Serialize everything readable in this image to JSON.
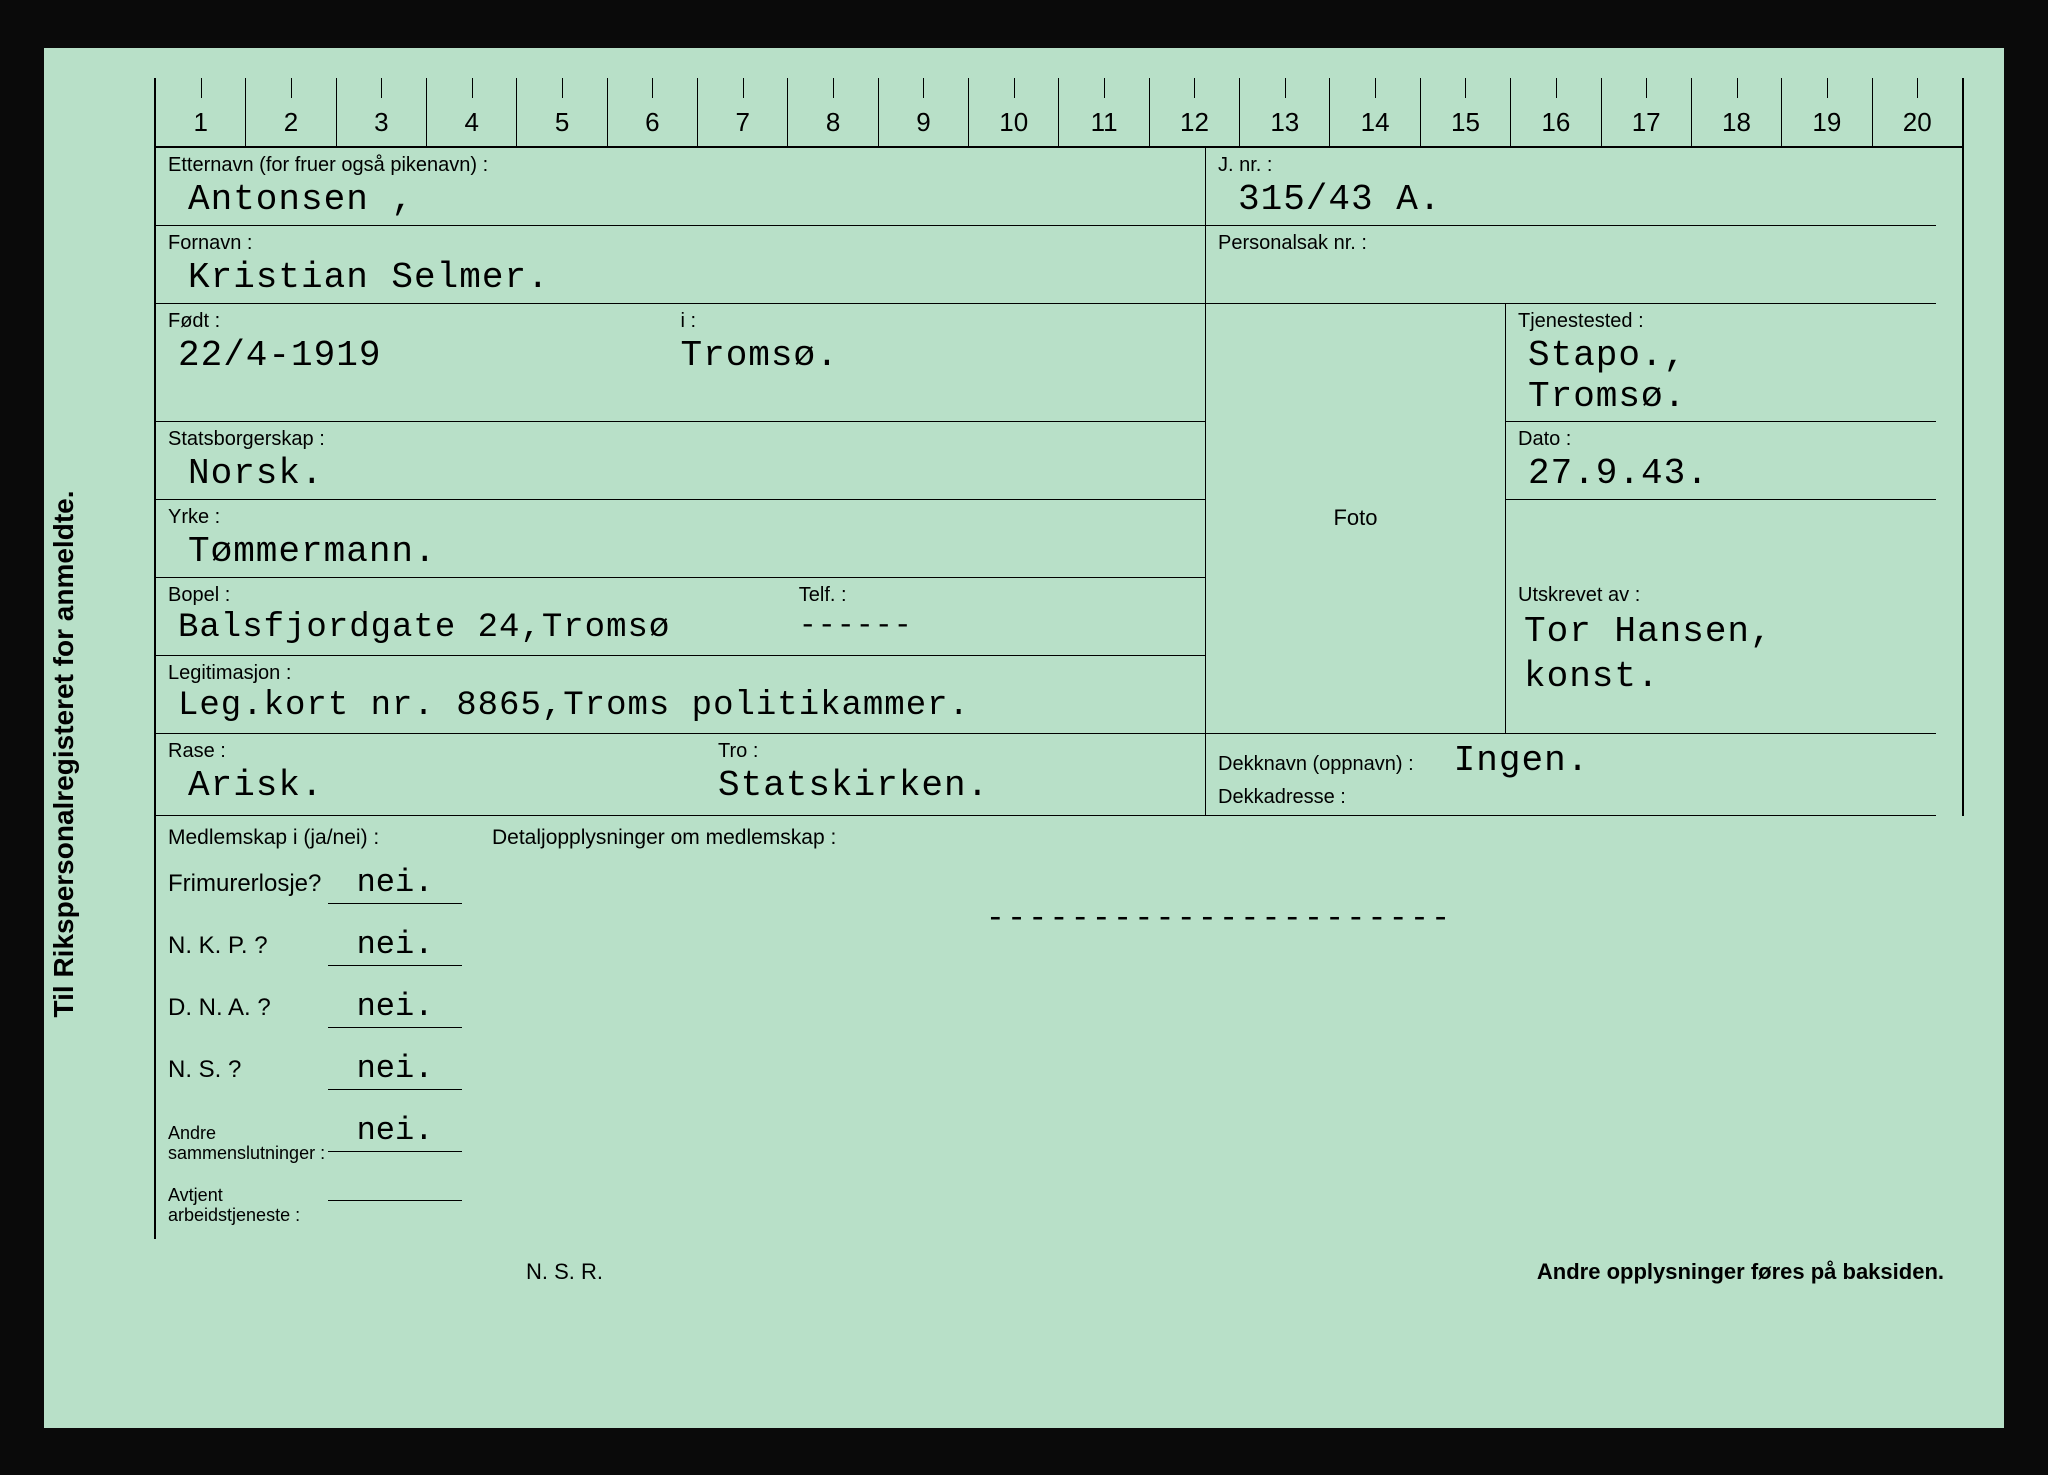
{
  "colors": {
    "card_bg": "#b8e0c8",
    "page_bg": "#0a0a0a",
    "line": "#000000",
    "label_font": "Arial, sans-serif",
    "value_font": "Courier New, monospace",
    "label_fontsize": 20,
    "value_fontsize": 36
  },
  "vertical_title": "Til Rikspersonalregisteret for anmeldte.",
  "ruler": [
    "1",
    "2",
    "3",
    "4",
    "5",
    "6",
    "7",
    "8",
    "9",
    "10",
    "11",
    "12",
    "13",
    "14",
    "15",
    "16",
    "17",
    "18",
    "19",
    "20"
  ],
  "labels": {
    "surname": "Etternavn (for fruer også pikenavn) :",
    "jnr": "J. nr. :",
    "firstname": "Fornavn :",
    "personalsak": "Personalsak nr. :",
    "born": "Født :",
    "born_in": "i :",
    "tjenestested": "Tjenestested :",
    "citizenship": "Statsborgerskap :",
    "dato": "Dato :",
    "occupation": "Yrke :",
    "foto": "Foto",
    "address": "Bopel :",
    "telf": "Telf. :",
    "utskrevet": "Utskrevet av :",
    "legitimasjon": "Legitimasjon :",
    "race": "Rase :",
    "faith": "Tro :",
    "dekknavn": "Dekknavn (oppnavn) :",
    "dekkadresse": "Dekkadresse :",
    "membership_header": "Medlemskap i (ja/nei) :",
    "details_header": "Detaljopplysninger om medlemskap :",
    "frimurer": "Frimurerlosje?",
    "nkp": "N. K. P. ?",
    "dna": "D. N. A. ?",
    "ns": "N. S. ?",
    "andre_samm": "Andre\nsammenslutninger :",
    "avtjent": "Avtjent\narbeidstjeneste :",
    "nsr": "N. S. R.",
    "back_note": "Andre opplysninger føres på baksiden."
  },
  "values": {
    "surname": "Antonsen ,",
    "jnr": "315/43 A.",
    "firstname": "Kristian Selmer.",
    "personalsak": "",
    "born": "22/4-1919",
    "born_in": "Tromsø.",
    "tjenestested": "Stapo.,\nTromsø.",
    "citizenship": "Norsk.",
    "dato": "27.9.43.",
    "occupation": "Tømmermann.",
    "address": "Balsfjordgate 24,Tromsø",
    "telf": "------",
    "utskrevet": "Tor Hansen,\n  konst.",
    "legitimasjon": "Leg.kort nr. 8865,Troms politikammer.",
    "race": "Arisk.",
    "faith": "Statskirken.",
    "dekknavn": "Ingen.",
    "dekkadresse": "",
    "frimurer": "nei.",
    "nkp": "nei.",
    "dna": "nei.",
    "ns": "nei.",
    "andre_samm": "nei.",
    "avtjent": "",
    "details_dashes": "----------------------"
  }
}
